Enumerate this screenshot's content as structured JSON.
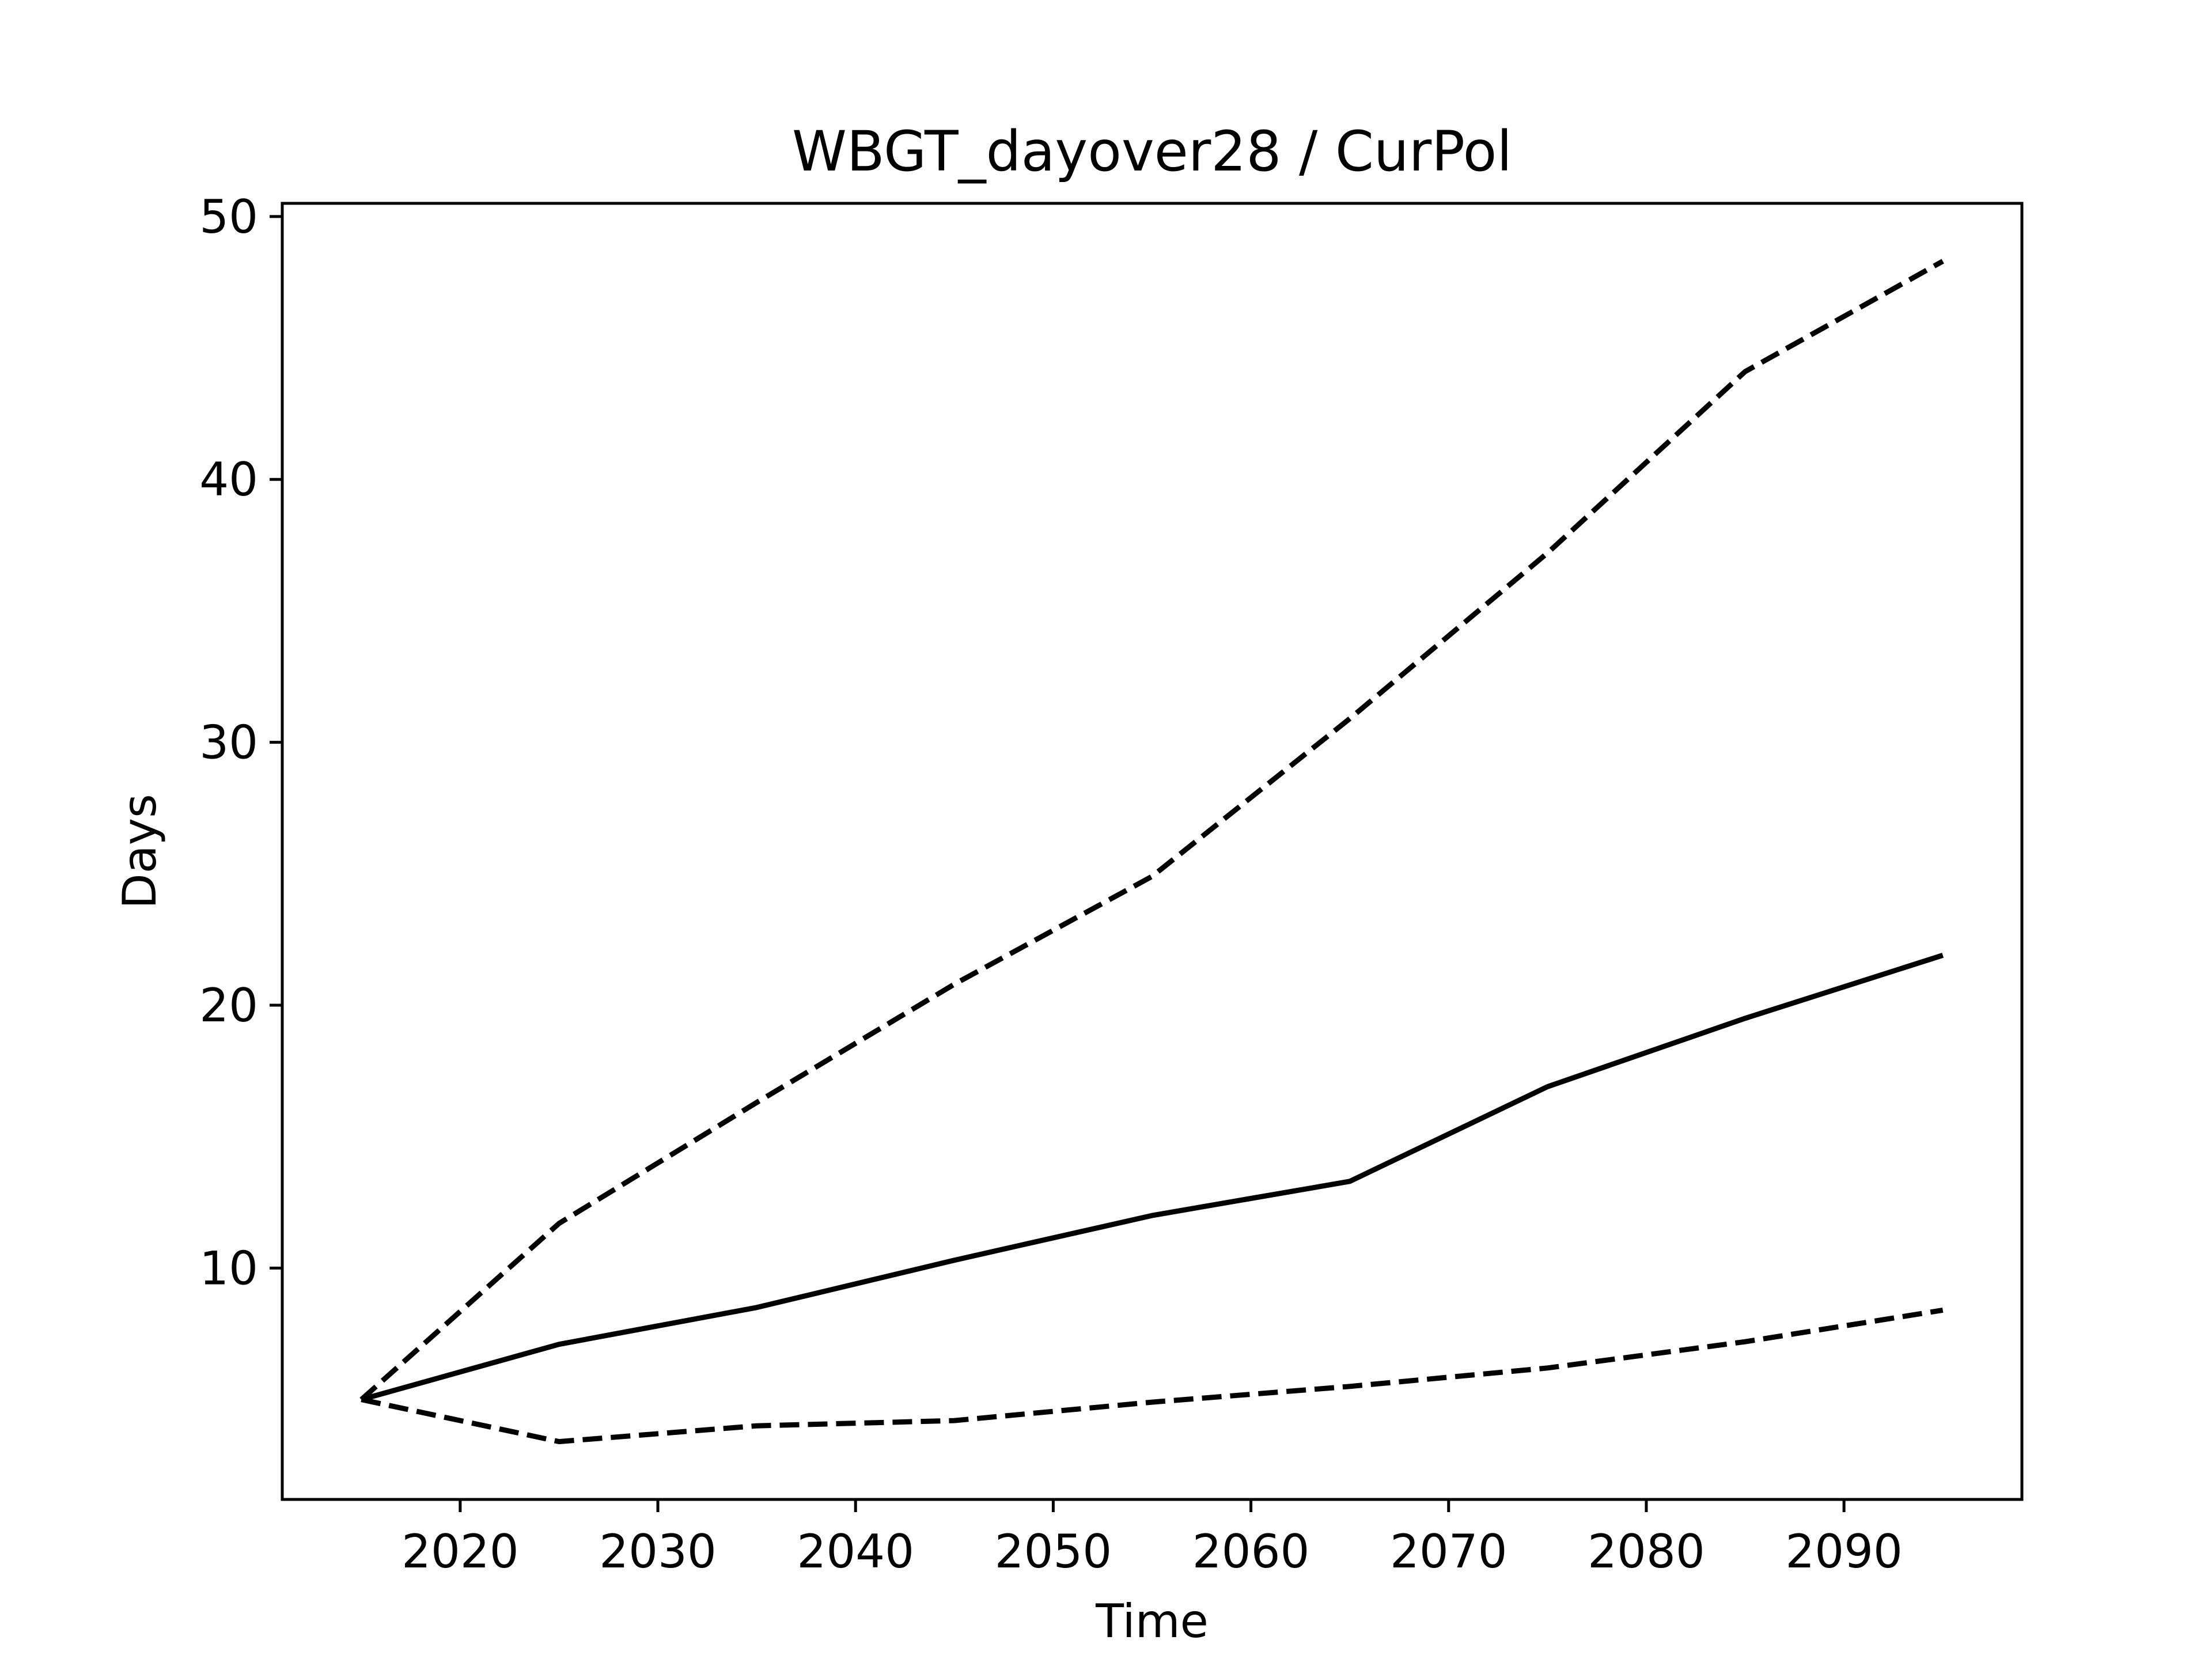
{
  "chart_data": {
    "type": "line",
    "title": "WBGT_dayover28 / CurPol",
    "xlabel": "Time",
    "ylabel": "Days",
    "xlim": [
      2011,
      2099
    ],
    "ylim": [
      1.2,
      50.5
    ],
    "grid": false,
    "xticks": [
      2020,
      2030,
      2040,
      2050,
      2060,
      2070,
      2080,
      2090
    ],
    "yticks": [
      10,
      20,
      30,
      40,
      50
    ],
    "x": [
      2015,
      2025,
      2035,
      2045,
      2055,
      2065,
      2075,
      2085,
      2095
    ],
    "series": [
      {
        "style": "solid",
        "color": "#000000",
        "values": [
          5.0,
          7.1,
          8.5,
          10.3,
          12.0,
          13.3,
          16.9,
          19.5,
          21.9
        ]
      },
      {
        "style": "dashed",
        "color": "#000000",
        "values": [
          5.0,
          11.7,
          16.3,
          20.8,
          24.9,
          30.9,
          37.2,
          44.1,
          48.3
        ]
      },
      {
        "style": "dashed",
        "color": "#000000",
        "values": [
          5.0,
          3.4,
          4.0,
          4.2,
          4.9,
          5.5,
          6.2,
          7.2,
          8.4
        ]
      }
    ]
  }
}
